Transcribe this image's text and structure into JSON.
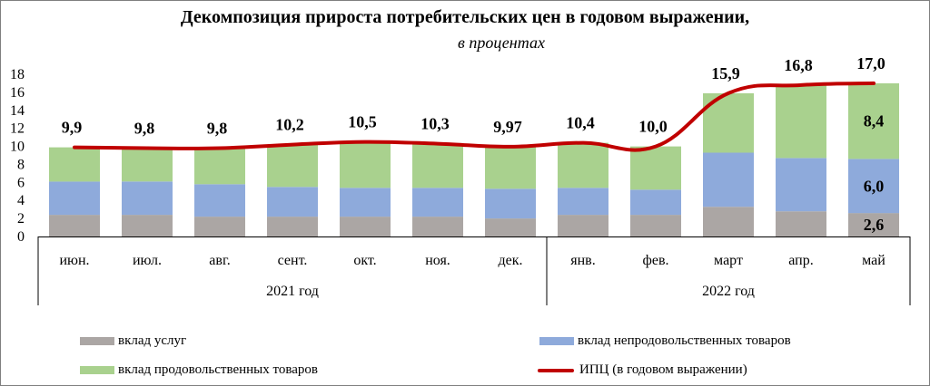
{
  "colors": {
    "services": "#aba6a4",
    "nonfood": "#8eaadb",
    "food": "#a9d18e",
    "cpi": "#c00000"
  },
  "chart_data": {
    "type": "bar",
    "title": "Декомпозиция прироста потребительских цен в годовом выражении,",
    "subtitle": "в процентах",
    "categories": [
      "июн.",
      "июл.",
      "авг.",
      "сент.",
      "окт.",
      "ноя.",
      "дек.",
      "янв.",
      "фев.",
      "март",
      "апр.",
      "май"
    ],
    "groups": [
      {
        "label": "2021 год",
        "count": 7
      },
      {
        "label": "2022 год",
        "count": 5
      }
    ],
    "ylim": [
      0,
      18
    ],
    "yticks": [
      0,
      2,
      4,
      6,
      8,
      10,
      12,
      14,
      16,
      18
    ],
    "stacked": true,
    "series": [
      {
        "name": "вклад услуг",
        "values": [
          2.4,
          2.4,
          2.2,
          2.2,
          2.2,
          2.2,
          2.0,
          2.4,
          2.4,
          3.3,
          2.8,
          2.6
        ]
      },
      {
        "name": "вклад непродовольственных товаров",
        "values": [
          3.7,
          3.7,
          3.6,
          3.3,
          3.2,
          3.2,
          3.3,
          3.0,
          2.8,
          6.0,
          5.9,
          6.0
        ]
      },
      {
        "name": "вклад продовольственных товаров",
        "values": [
          3.8,
          3.7,
          4.0,
          4.7,
          5.1,
          4.9,
          4.67,
          5.0,
          4.8,
          6.6,
          8.1,
          8.4
        ]
      }
    ],
    "line": {
      "name": "ИПЦ (в годовом выражении)",
      "values": [
        9.9,
        9.8,
        9.8,
        10.2,
        10.5,
        10.3,
        9.97,
        10.4,
        10.0,
        15.9,
        16.8,
        17.0
      ],
      "labels": [
        "9,9",
        "9,8",
        "9,8",
        "10,2",
        "10,5",
        "10,3",
        "9,97",
        "10,4",
        "10,0",
        "15,9",
        "16,8",
        "17,0"
      ]
    },
    "segment_labels": [
      {
        "index": 11,
        "series": 0,
        "text": "2,6"
      },
      {
        "index": 11,
        "series": 1,
        "text": "6,0"
      },
      {
        "index": 11,
        "series": 2,
        "text": "8,4"
      }
    ],
    "legend": {
      "services": "вклад услуг",
      "nonfood": "вклад непродовольственных товаров",
      "food": "вклад продовольственных товаров",
      "cpi": "ИПЦ (в годовом выражении)"
    }
  }
}
